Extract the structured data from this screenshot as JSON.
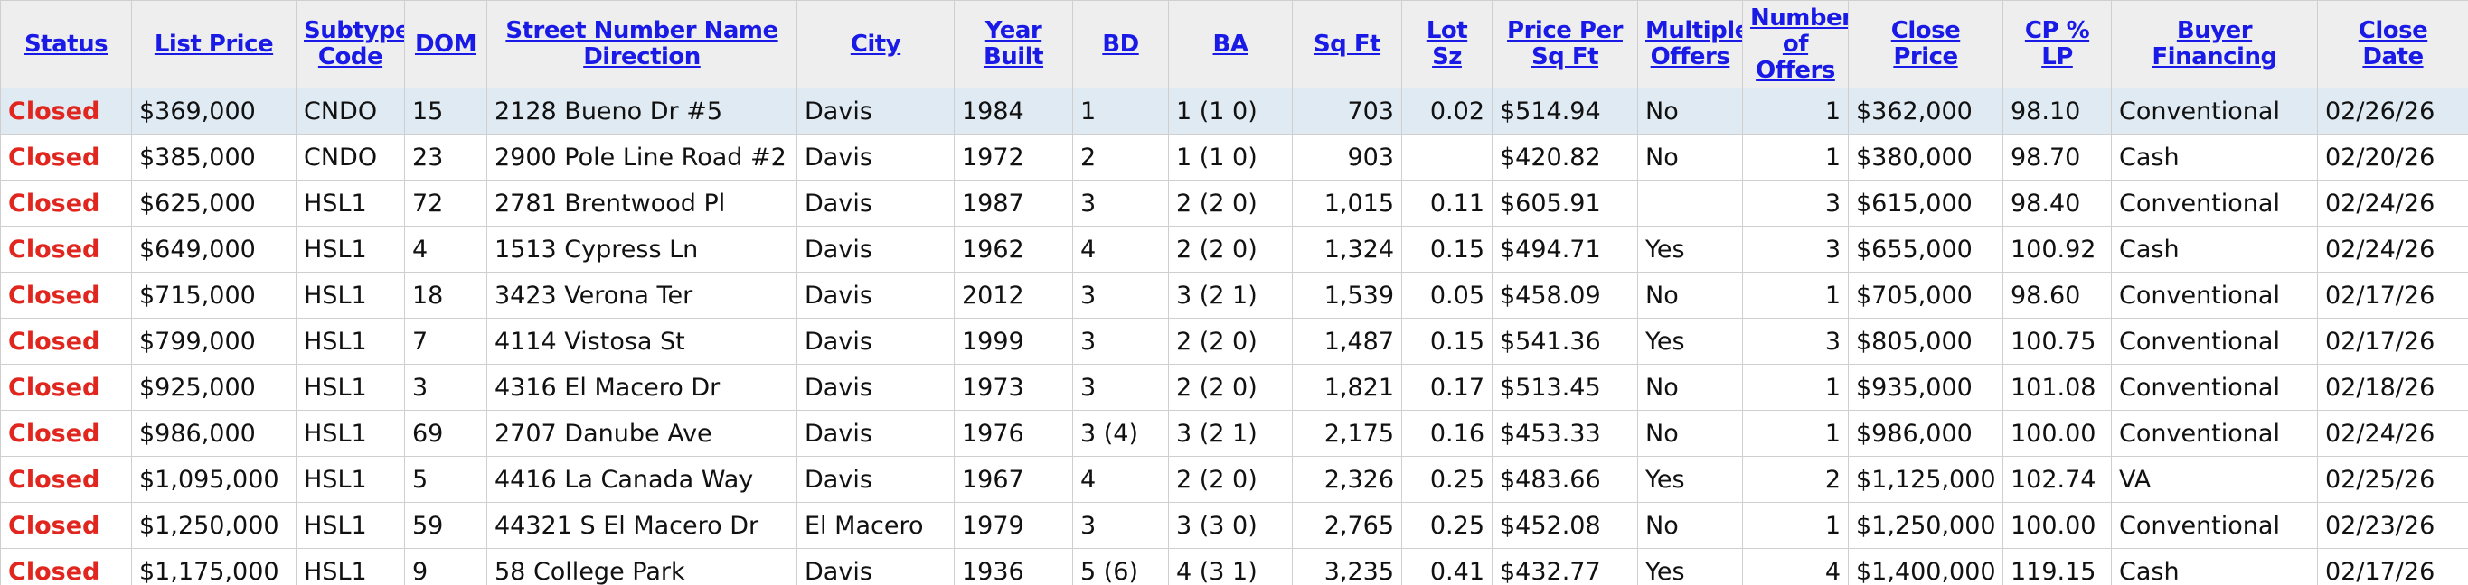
{
  "table": {
    "headers": [
      "Status",
      "List Price",
      "Subtype Code",
      "DOM",
      "Street Number Name Direction",
      "City",
      "Year Built",
      "BD",
      "BA",
      "Sq Ft",
      "Lot Sz",
      "Price Per Sq Ft",
      "Multiple Offers",
      "Number of Offers",
      "Close Price",
      "CP % LP",
      "Buyer Financing",
      "Close Date"
    ],
    "rows": [
      [
        "Closed",
        "$369,000",
        "CNDO",
        "15",
        "2128 Bueno Dr #5",
        "Davis",
        "1984",
        "1",
        "1 (1 0)",
        "703",
        "0.02",
        "$514.94",
        "No",
        "1",
        "$362,000",
        "98.10",
        "Conventional",
        "02/26/26"
      ],
      [
        "Closed",
        "$385,000",
        "CNDO",
        "23",
        "2900 Pole Line Road #2",
        "Davis",
        "1972",
        "2",
        "1 (1 0)",
        "903",
        null,
        "$420.82",
        "No",
        "1",
        "$380,000",
        "98.70",
        "Cash",
        "02/20/26"
      ],
      [
        "Closed",
        "$625,000",
        "HSL1",
        "72",
        "2781 Brentwood Pl",
        "Davis",
        "1987",
        "3",
        "2 (2 0)",
        "1,015",
        "0.11",
        "$605.91",
        null,
        "3",
        "$615,000",
        "98.40",
        "Conventional",
        "02/24/26"
      ],
      [
        "Closed",
        "$649,000",
        "HSL1",
        "4",
        "1513 Cypress Ln",
        "Davis",
        "1962",
        "4",
        "2 (2 0)",
        "1,324",
        "0.15",
        "$494.71",
        "Yes",
        "3",
        "$655,000",
        "100.92",
        "Cash",
        "02/24/26"
      ],
      [
        "Closed",
        "$715,000",
        "HSL1",
        "18",
        "3423 Verona Ter",
        "Davis",
        "2012",
        "3",
        "3 (2 1)",
        "1,539",
        "0.05",
        "$458.09",
        "No",
        "1",
        "$705,000",
        "98.60",
        "Conventional",
        "02/17/26"
      ],
      [
        "Closed",
        "$799,000",
        "HSL1",
        "7",
        "4114 Vistosa St",
        "Davis",
        "1999",
        "3",
        "2 (2 0)",
        "1,487",
        "0.15",
        "$541.36",
        "Yes",
        "3",
        "$805,000",
        "100.75",
        "Conventional",
        "02/17/26"
      ],
      [
        "Closed",
        "$925,000",
        "HSL1",
        "3",
        "4316 El Macero Dr",
        "Davis",
        "1973",
        "3",
        "2 (2 0)",
        "1,821",
        "0.17",
        "$513.45",
        "No",
        "1",
        "$935,000",
        "101.08",
        "Conventional",
        "02/18/26"
      ],
      [
        "Closed",
        "$986,000",
        "HSL1",
        "69",
        "2707 Danube Ave",
        "Davis",
        "1976",
        "3 (4)",
        "3 (2 1)",
        "2,175",
        "0.16",
        "$453.33",
        "No",
        "1",
        "$986,000",
        "100.00",
        "Conventional",
        "02/24/26"
      ],
      [
        "Closed",
        "$1,095,000",
        "HSL1",
        "5",
        "4416 La Canada Way",
        "Davis",
        "1967",
        "4",
        "2 (2 0)",
        "2,326",
        "0.25",
        "$483.66",
        "Yes",
        "2",
        "$1,125,000",
        "102.74",
        "VA",
        "02/25/26"
      ],
      [
        "Closed",
        "$1,250,000",
        "HSL1",
        "59",
        "44321 S El Macero Dr",
        "El Macero",
        "1979",
        "3",
        "3 (3 0)",
        "2,765",
        "0.25",
        "$452.08",
        "No",
        "1",
        "$1,250,000",
        "100.00",
        "Conventional",
        "02/23/26"
      ],
      [
        "Closed",
        "$1,175,000",
        "HSL1",
        "9",
        "58 College Park",
        "Davis",
        "1936",
        "5 (6)",
        "4 (3 1)",
        "3,235",
        "0.41",
        "$432.77",
        "Yes",
        "4",
        "$1,400,000",
        "119.15",
        "Cash",
        "02/17/26"
      ]
    ]
  }
}
